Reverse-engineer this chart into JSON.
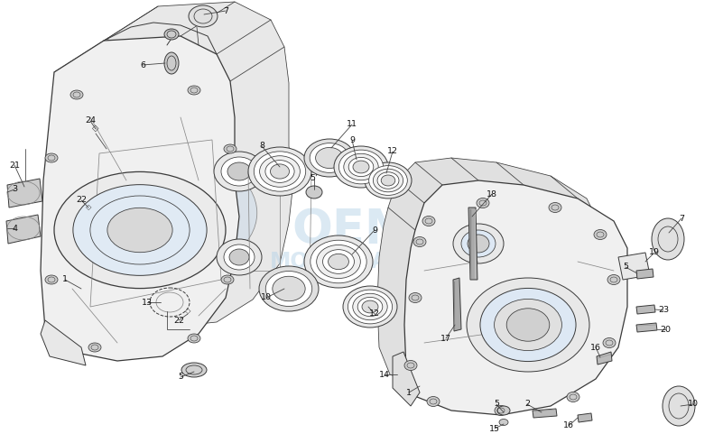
{
  "bg_color": "#ffffff",
  "line_color": "#3a3a3a",
  "light_line": "#888888",
  "fill_light": "#f5f5f5",
  "fill_case": "#f0f0f0",
  "fill_bore": "#d8e8f4",
  "watermark_blue": "#b8d4e8",
  "fig_width": 8.01,
  "fig_height": 4.91,
  "dpi": 100,
  "lw_main": 0.9,
  "lw_thin": 0.55,
  "lw_med": 0.7,
  "callout_fs": 6.8,
  "callout_color": "#111111",
  "leader_color": "#444444"
}
